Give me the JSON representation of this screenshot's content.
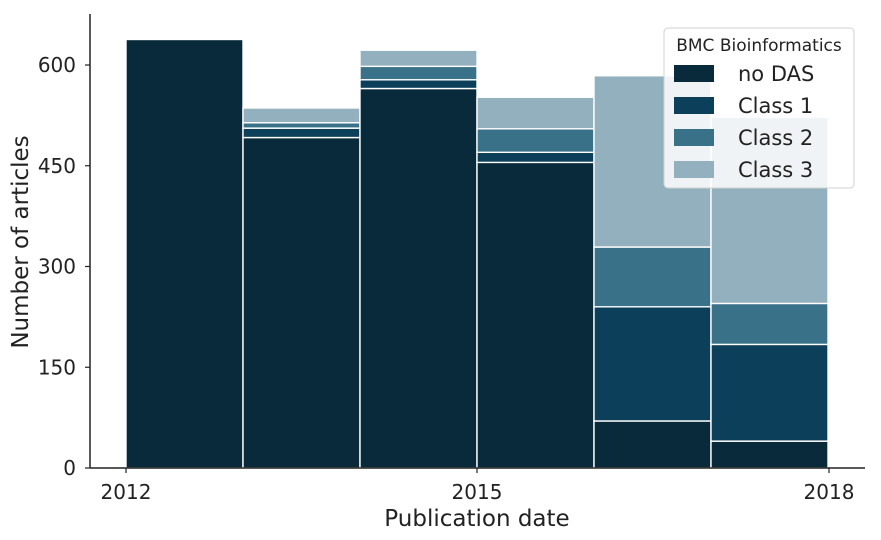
{
  "chart_data": {
    "type": "bar",
    "stacked": true,
    "xlabel": "Publication date",
    "ylabel": "Number of articles",
    "x_ticks": [
      "2012",
      "2015",
      "2018"
    ],
    "y_ticks": [
      0,
      150,
      300,
      450,
      600
    ],
    "ylim": [
      0,
      670
    ],
    "grid": false,
    "legend": {
      "title": "BMC Bioinformatics",
      "placement": "top-right"
    },
    "bins": [
      "2012",
      "2013",
      "2014",
      "2015",
      "2016",
      "2017"
    ],
    "series": [
      {
        "name": "no DAS",
        "color": "#082a3a",
        "values": [
          638,
          492,
          565,
          455,
          70,
          40
        ]
      },
      {
        "name": "Class 1",
        "color": "#0c3f5a",
        "values": [
          0,
          14,
          13,
          15,
          170,
          144
        ]
      },
      {
        "name": "Class 2",
        "color": "#397189",
        "values": [
          0,
          8,
          20,
          35,
          89,
          61
        ]
      },
      {
        "name": "Class 3",
        "color": "#92b0bd",
        "values": [
          0,
          22,
          24,
          47,
          255,
          277
        ]
      }
    ]
  }
}
